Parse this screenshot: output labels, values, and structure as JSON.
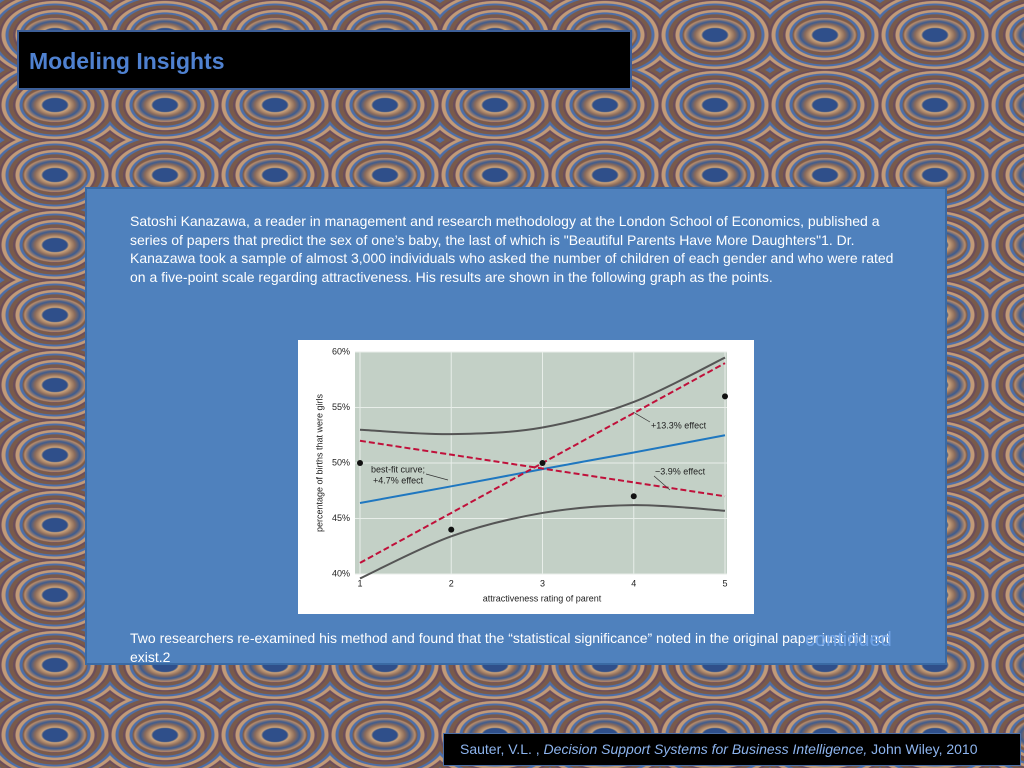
{
  "slide": {
    "title": "Modeling Insights",
    "paragraphs": [
      "Satoshi Kanazawa, a reader in management and research methodology at the London School of Economics, published a series of papers that predict the sex of one’s baby, the last of which is \"Beautiful Parents Have More Daughters\"1.  Dr. Kanazawa took a sample of almost 3,000 individuals who asked the number of children of each gender and who were rated on a five-point scale regarding attractiveness.  His results are shown in the following graph as the points.",
      "Two researchers re-examined his method and found that the “statistical significance” noted in the original paper just did not exist.2"
    ],
    "continued": "continued",
    "citation": {
      "author": "Sauter, V.L. , ",
      "book": "Decision Support Systems for Business Intelligence,",
      "publisher": " John Wiley, 2010"
    }
  },
  "chart_data": {
    "type": "line",
    "x_label": "attractiveness rating of parent",
    "y_label": "percentage of births that were girls",
    "x": [
      1,
      2,
      3,
      4,
      5
    ],
    "xlim": [
      1,
      5
    ],
    "xticks": [
      1,
      2,
      3,
      4,
      5
    ],
    "ylim": [
      40,
      60
    ],
    "yticks": [
      {
        "value": 40,
        "label": "40%"
      },
      {
        "value": 45,
        "label": "45%"
      },
      {
        "value": 50,
        "label": "50%"
      },
      {
        "value": 55,
        "label": "55%"
      },
      {
        "value": 60,
        "label": "60%"
      }
    ],
    "grid": true,
    "series": [
      {
        "type": "line",
        "color": "#555555",
        "values": [
          53,
          52.6,
          53.2,
          55.5,
          59.5
        ]
      },
      {
        "type": "line",
        "color": "#555555",
        "values": [
          39.6,
          43.4,
          45.5,
          46.2,
          45.7
        ]
      },
      {
        "type": "line",
        "color": "#1f77c0",
        "values": [
          46.4,
          47.9,
          49.45,
          50.95,
          52.5
        ]
      },
      {
        "type": "dashed",
        "color": "#c0103a",
        "values": [
          41,
          45.5,
          50,
          54.5,
          59
        ]
      },
      {
        "type": "dashed",
        "color": "#c0103a",
        "values": [
          52,
          50.75,
          49.5,
          48.25,
          47
        ]
      },
      {
        "type": "scatter",
        "color": "#111111",
        "values": [
          50,
          44,
          50,
          47,
          56
        ]
      }
    ],
    "annotations": [
      "+13.3% effect",
      "−3.9% effect",
      "best-fit curve;",
      "+4.7% effect"
    ]
  }
}
